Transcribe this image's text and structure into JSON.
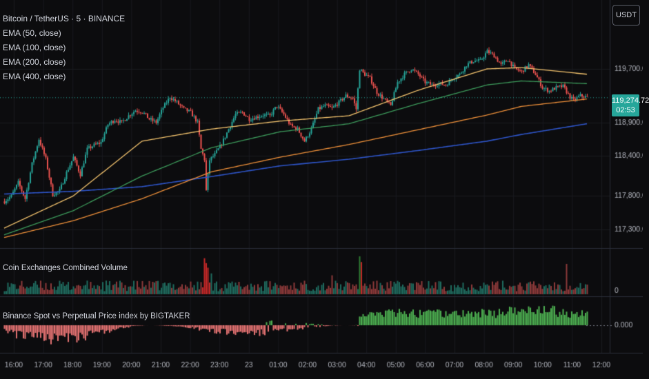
{
  "header": {
    "symbol_line": "Bitcoin / TetherUS · 5 · BINANCE",
    "currency_button": "USDT"
  },
  "indicators": [
    {
      "label": "EMA (50, close)",
      "color": "#f7c66f"
    },
    {
      "label": "EMA (100, close)",
      "color": "#3d9c5c"
    },
    {
      "label": "EMA (200, close)",
      "color": "#f0913a"
    },
    {
      "label": "EMA (400, close)",
      "color": "#2e55c9"
    }
  ],
  "last_price": {
    "value": "119,274.72",
    "countdown": "02:53",
    "color": "#26a69a"
  },
  "colors": {
    "up": "#26a69a",
    "down": "#ef5350",
    "up_bright": "#4caf50",
    "down_muted": "#e57373",
    "vol_up": "#1f6b5e",
    "vol_down": "#8e3a3a"
  },
  "chart_data": [
    {
      "type": "candlestick",
      "title": "Bitcoin / TetherUS · 5 · BINANCE",
      "y_ticks": [
        "119,700.00",
        "118,900.00",
        "118,400.00",
        "117,800.00",
        "117,300.00"
      ],
      "y_tick_values": [
        119700,
        118900,
        118400,
        117800,
        117300
      ],
      "x_ticks": [
        "16:00",
        "17:00",
        "18:00",
        "19:00",
        "20:00",
        "21:00",
        "22:00",
        "23:00",
        "23",
        "01:00",
        "02:00",
        "03:00",
        "04:00",
        "05:00",
        "06:00",
        "07:00",
        "08:00",
        "09:00",
        "10:00",
        "11:00",
        "12:00"
      ],
      "price_anchors": [
        [
          0,
          117720
        ],
        [
          4,
          117800
        ],
        [
          8,
          118000
        ],
        [
          12,
          117760
        ],
        [
          16,
          118280
        ],
        [
          20,
          118650
        ],
        [
          24,
          118350
        ],
        [
          28,
          117820
        ],
        [
          32,
          117880
        ],
        [
          36,
          118150
        ],
        [
          40,
          118380
        ],
        [
          44,
          118120
        ],
        [
          48,
          118500
        ],
        [
          52,
          118560
        ],
        [
          56,
          118600
        ],
        [
          60,
          118870
        ],
        [
          64,
          118940
        ],
        [
          68,
          118900
        ],
        [
          72,
          119000
        ],
        [
          76,
          119080
        ],
        [
          80,
          119060
        ],
        [
          84,
          118950
        ],
        [
          88,
          118900
        ],
        [
          92,
          119120
        ],
        [
          96,
          119280
        ],
        [
          100,
          119200
        ],
        [
          104,
          119100
        ],
        [
          108,
          119050
        ],
        [
          112,
          118900
        ],
        [
          114,
          118500
        ],
        [
          116,
          118350
        ],
        [
          117,
          117880
        ],
        [
          119,
          118340
        ],
        [
          122,
          118420
        ],
        [
          126,
          118580
        ],
        [
          130,
          118800
        ],
        [
          134,
          119020
        ],
        [
          138,
          119050
        ],
        [
          142,
          118950
        ],
        [
          146,
          118980
        ],
        [
          150,
          119010
        ],
        [
          154,
          119000
        ],
        [
          158,
          119150
        ],
        [
          162,
          119020
        ],
        [
          166,
          118850
        ],
        [
          170,
          118800
        ],
        [
          174,
          118620
        ],
        [
          178,
          118800
        ],
        [
          182,
          119100
        ],
        [
          186,
          119150
        ],
        [
          190,
          119110
        ],
        [
          194,
          119200
        ],
        [
          198,
          119300
        ],
        [
          202,
          119260
        ],
        [
          204,
          119100
        ],
        [
          206,
          119700
        ],
        [
          208,
          119640
        ],
        [
          212,
          119560
        ],
        [
          216,
          119350
        ],
        [
          220,
          119250
        ],
        [
          224,
          119150
        ],
        [
          228,
          119500
        ],
        [
          232,
          119620
        ],
        [
          236,
          119700
        ],
        [
          240,
          119620
        ],
        [
          244,
          119500
        ],
        [
          248,
          119460
        ],
        [
          252,
          119480
        ],
        [
          256,
          119460
        ],
        [
          260,
          119560
        ],
        [
          264,
          119620
        ],
        [
          268,
          119760
        ],
        [
          272,
          119820
        ],
        [
          276,
          119820
        ],
        [
          280,
          119960
        ],
        [
          284,
          119900
        ],
        [
          288,
          119760
        ],
        [
          292,
          119840
        ],
        [
          296,
          119700
        ],
        [
          300,
          119660
        ],
        [
          304,
          119760
        ],
        [
          308,
          119620
        ],
        [
          312,
          119420
        ],
        [
          316,
          119370
        ],
        [
          320,
          119420
        ],
        [
          324,
          119440
        ],
        [
          328,
          119280
        ],
        [
          330,
          119230
        ],
        [
          334,
          119300
        ],
        [
          338,
          119275
        ]
      ],
      "ema_anchors": {
        "ema50": [
          [
            0,
            117320
          ],
          [
            40,
            117800
          ],
          [
            80,
            118620
          ],
          [
            120,
            118800
          ],
          [
            160,
            118920
          ],
          [
            200,
            119000
          ],
          [
            240,
            119380
          ],
          [
            280,
            119700
          ],
          [
            300,
            119720
          ],
          [
            338,
            119620
          ]
        ],
        "ema100": [
          [
            0,
            117220
          ],
          [
            40,
            117580
          ],
          [
            80,
            118100
          ],
          [
            120,
            118520
          ],
          [
            160,
            118760
          ],
          [
            200,
            118880
          ],
          [
            240,
            119180
          ],
          [
            280,
            119460
          ],
          [
            300,
            119520
          ],
          [
            338,
            119480
          ]
        ],
        "ema200": [
          [
            0,
            117180
          ],
          [
            40,
            117430
          ],
          [
            80,
            117760
          ],
          [
            120,
            118160
          ],
          [
            160,
            118380
          ],
          [
            200,
            118570
          ],
          [
            240,
            118790
          ],
          [
            280,
            119010
          ],
          [
            300,
            119140
          ],
          [
            338,
            119250
          ]
        ],
        "ema400": [
          [
            0,
            117830
          ],
          [
            40,
            117870
          ],
          [
            80,
            117940
          ],
          [
            120,
            118090
          ],
          [
            160,
            118250
          ],
          [
            200,
            118350
          ],
          [
            240,
            118480
          ],
          [
            280,
            118620
          ],
          [
            300,
            118720
          ],
          [
            338,
            118880
          ]
        ]
      }
    },
    {
      "type": "bar",
      "title": "Coin Exchanges Combined Volume",
      "y_ticks": [
        "0"
      ],
      "peaks": [
        [
          116,
          0.95
        ],
        [
          117,
          0.82
        ],
        [
          118,
          0.7
        ],
        [
          206,
          1.0
        ],
        [
          207,
          0.85
        ],
        [
          326,
          0.8
        ],
        [
          120,
          0.55
        ],
        [
          190,
          0.5
        ]
      ]
    },
    {
      "type": "bar",
      "title": "Binance Spot vs Perpetual Price index by BIGTAKER",
      "y_ticks": [
        "0.000"
      ],
      "switch_index": 206
    }
  ]
}
